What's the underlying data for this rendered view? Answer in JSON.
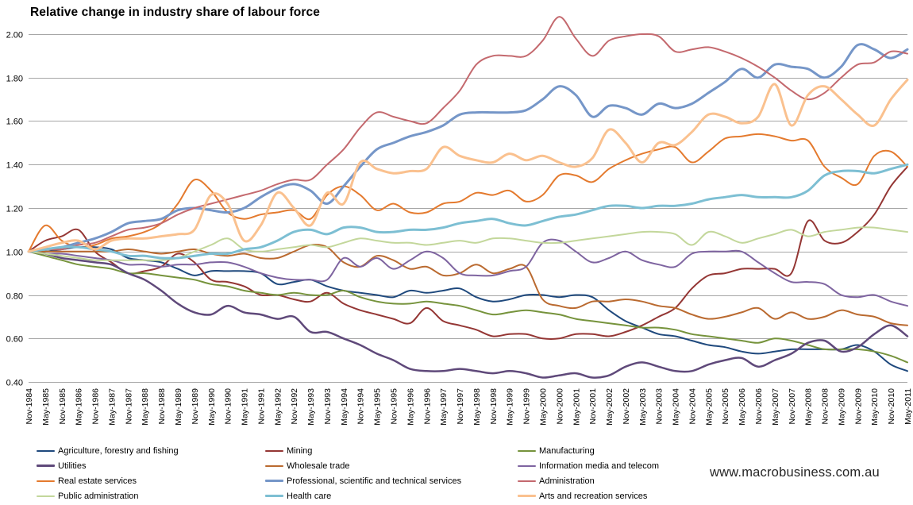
{
  "page": {
    "watermark": "www.macrobusiness.com.au"
  },
  "chart_data": {
    "type": "line",
    "title": "Relative change in industry share of labour force",
    "xlabel": "",
    "ylabel": "",
    "ylim": [
      0.4,
      2.0
    ],
    "grid": true,
    "grid_color": "#A6A6A6",
    "legend_position": "bottom",
    "baseline_value": 1.0,
    "y_ticks": [
      "2.00",
      "1.80",
      "1.60",
      "1.40",
      "1.20",
      "1.00",
      "0.80",
      "0.60",
      "0.40"
    ],
    "x_labels": [
      "Nov-1984",
      "May-1985",
      "Nov-1985",
      "May-1986",
      "Nov-1986",
      "May-1987",
      "Nov-1987",
      "May-1988",
      "Nov-1988",
      "May-1989",
      "Nov-1989",
      "May-1990",
      "Nov-1990",
      "May-1991",
      "Nov-1991",
      "May-1992",
      "Nov-1992",
      "May-1993",
      "Nov-1993",
      "May-1994",
      "Nov-1994",
      "May-1995",
      "Nov-1995",
      "May-1996",
      "Nov-1996",
      "May-1997",
      "Nov-1997",
      "May-1998",
      "Nov-1998",
      "May-1999",
      "Nov-1999",
      "May-2000",
      "Nov-2000",
      "May-2001",
      "Nov-2001",
      "May-2002",
      "Nov-2002",
      "May-2003",
      "Nov-2003",
      "May-2004",
      "Nov-2004",
      "May-2005",
      "Nov-2005",
      "May-2006",
      "Nov-2006",
      "May-2007",
      "Nov-2007",
      "May-2008",
      "Nov-2008",
      "May-2009",
      "Nov-2009",
      "May-2010",
      "Nov-2010",
      "May-2011"
    ],
    "series": [
      {
        "name": "Agriculture, forestry and fishing",
        "color": "#1F497D",
        "width": 2,
        "values": [
          1.0,
          1.0,
          1.01,
          1.02,
          1.02,
          1.01,
          0.97,
          0.96,
          0.95,
          0.92,
          0.89,
          0.91,
          0.91,
          0.91,
          0.9,
          0.85,
          0.86,
          0.87,
          0.84,
          0.82,
          0.81,
          0.8,
          0.79,
          0.82,
          0.81,
          0.82,
          0.83,
          0.79,
          0.77,
          0.78,
          0.8,
          0.8,
          0.79,
          0.8,
          0.79,
          0.73,
          0.68,
          0.65,
          0.62,
          0.61,
          0.59,
          0.57,
          0.56,
          0.54,
          0.53,
          0.54,
          0.55,
          0.55,
          0.55,
          0.55,
          0.57,
          0.54,
          0.48,
          0.45
        ]
      },
      {
        "name": "Mining",
        "color": "#943634",
        "width": 2,
        "values": [
          1.0,
          1.05,
          1.07,
          1.1,
          1.0,
          0.95,
          0.9,
          0.91,
          0.93,
          0.99,
          0.95,
          0.87,
          0.86,
          0.84,
          0.8,
          0.8,
          0.78,
          0.77,
          0.81,
          0.76,
          0.73,
          0.71,
          0.69,
          0.67,
          0.74,
          0.68,
          0.66,
          0.64,
          0.61,
          0.62,
          0.62,
          0.6,
          0.6,
          0.62,
          0.62,
          0.61,
          0.63,
          0.66,
          0.7,
          0.74,
          0.83,
          0.89,
          0.9,
          0.92,
          0.92,
          0.92,
          0.9,
          1.14,
          1.05,
          1.04,
          1.09,
          1.17,
          1.3,
          1.39
        ]
      },
      {
        "name": "Manufacturing",
        "color": "#76933C",
        "width": 2,
        "values": [
          1.0,
          0.98,
          0.96,
          0.94,
          0.93,
          0.92,
          0.9,
          0.9,
          0.89,
          0.88,
          0.87,
          0.85,
          0.84,
          0.82,
          0.81,
          0.8,
          0.81,
          0.8,
          0.8,
          0.82,
          0.79,
          0.77,
          0.76,
          0.76,
          0.77,
          0.76,
          0.75,
          0.73,
          0.71,
          0.72,
          0.73,
          0.72,
          0.71,
          0.69,
          0.68,
          0.67,
          0.66,
          0.65,
          0.65,
          0.64,
          0.62,
          0.61,
          0.6,
          0.59,
          0.58,
          0.6,
          0.59,
          0.57,
          0.55,
          0.55,
          0.55,
          0.54,
          0.52,
          0.49
        ]
      },
      {
        "name": "Utilities",
        "color": "#5F497A",
        "width": 2.5,
        "values": [
          1.0,
          0.99,
          0.97,
          0.96,
          0.95,
          0.94,
          0.9,
          0.87,
          0.82,
          0.76,
          0.72,
          0.71,
          0.75,
          0.72,
          0.71,
          0.69,
          0.7,
          0.63,
          0.63,
          0.6,
          0.57,
          0.53,
          0.5,
          0.46,
          0.45,
          0.45,
          0.46,
          0.45,
          0.44,
          0.45,
          0.44,
          0.42,
          0.43,
          0.44,
          0.42,
          0.43,
          0.47,
          0.49,
          0.47,
          0.45,
          0.45,
          0.48,
          0.5,
          0.51,
          0.47,
          0.5,
          0.53,
          0.58,
          0.59,
          0.54,
          0.56,
          0.62,
          0.66,
          0.61
        ]
      },
      {
        "name": "Wholesale trade",
        "color": "#BA6A30",
        "width": 2,
        "values": [
          1.0,
          1.0,
          1.0,
          1.0,
          1.0,
          1.0,
          1.01,
          1.0,
          0.99,
          1.0,
          1.01,
          0.99,
          0.98,
          0.99,
          0.97,
          0.97,
          1.0,
          1.03,
          1.02,
          0.95,
          0.93,
          0.98,
          0.96,
          0.92,
          0.93,
          0.89,
          0.9,
          0.94,
          0.9,
          0.92,
          0.93,
          0.78,
          0.75,
          0.74,
          0.77,
          0.77,
          0.78,
          0.77,
          0.75,
          0.74,
          0.71,
          0.69,
          0.7,
          0.72,
          0.74,
          0.69,
          0.72,
          0.69,
          0.7,
          0.73,
          0.71,
          0.7,
          0.67,
          0.66
        ]
      },
      {
        "name": "Information media and telecom",
        "color": "#7E64A0",
        "width": 2,
        "values": [
          1.0,
          0.99,
          0.99,
          0.98,
          0.97,
          0.96,
          0.94,
          0.94,
          0.93,
          0.94,
          0.94,
          0.95,
          0.95,
          0.93,
          0.9,
          0.88,
          0.87,
          0.87,
          0.87,
          0.97,
          0.93,
          0.97,
          0.92,
          0.96,
          1.0,
          0.97,
          0.9,
          0.89,
          0.89,
          0.91,
          0.93,
          1.04,
          1.05,
          1.0,
          0.95,
          0.97,
          1.0,
          0.96,
          0.94,
          0.93,
          0.99,
          1.0,
          1.0,
          1.0,
          0.95,
          0.9,
          0.86,
          0.86,
          0.85,
          0.8,
          0.79,
          0.8,
          0.77,
          0.75
        ]
      },
      {
        "name": "Real estate services",
        "color": "#E47A2E",
        "width": 2,
        "values": [
          1.0,
          1.12,
          1.05,
          1.02,
          1.03,
          1.06,
          1.07,
          1.09,
          1.13,
          1.22,
          1.33,
          1.28,
          1.18,
          1.15,
          1.17,
          1.18,
          1.19,
          1.15,
          1.26,
          1.3,
          1.26,
          1.19,
          1.22,
          1.18,
          1.18,
          1.22,
          1.23,
          1.27,
          1.26,
          1.28,
          1.23,
          1.26,
          1.35,
          1.35,
          1.32,
          1.38,
          1.42,
          1.45,
          1.47,
          1.48,
          1.41,
          1.46,
          1.52,
          1.53,
          1.54,
          1.53,
          1.51,
          1.51,
          1.39,
          1.34,
          1.31,
          1.44,
          1.46,
          1.39
        ]
      },
      {
        "name": "Professional, scientific and technical services",
        "color": "#7596C8",
        "width": 3,
        "values": [
          1.0,
          1.01,
          1.02,
          1.04,
          1.06,
          1.09,
          1.13,
          1.14,
          1.15,
          1.19,
          1.2,
          1.19,
          1.18,
          1.2,
          1.25,
          1.29,
          1.31,
          1.28,
          1.22,
          1.3,
          1.39,
          1.47,
          1.5,
          1.53,
          1.55,
          1.58,
          1.63,
          1.64,
          1.64,
          1.64,
          1.65,
          1.7,
          1.76,
          1.72,
          1.62,
          1.67,
          1.66,
          1.63,
          1.68,
          1.66,
          1.68,
          1.73,
          1.78,
          1.84,
          1.8,
          1.86,
          1.85,
          1.84,
          1.8,
          1.85,
          1.95,
          1.93,
          1.89,
          1.93
        ]
      },
      {
        "name": "Administration",
        "color": "#C4696E",
        "width": 2,
        "values": [
          1.0,
          1.01,
          1.01,
          1.03,
          1.04,
          1.07,
          1.1,
          1.11,
          1.13,
          1.17,
          1.2,
          1.22,
          1.24,
          1.26,
          1.28,
          1.31,
          1.33,
          1.33,
          1.4,
          1.47,
          1.57,
          1.64,
          1.62,
          1.6,
          1.59,
          1.66,
          1.74,
          1.86,
          1.9,
          1.9,
          1.9,
          1.97,
          2.08,
          1.98,
          1.9,
          1.97,
          1.99,
          2.0,
          1.99,
          1.92,
          1.93,
          1.94,
          1.92,
          1.89,
          1.85,
          1.8,
          1.74,
          1.7,
          1.73,
          1.8,
          1.86,
          1.87,
          1.92,
          1.91
        ]
      },
      {
        "name": "Public administration",
        "color": "#C3D79B",
        "width": 2,
        "values": [
          1.0,
          0.99,
          0.98,
          0.97,
          0.96,
          0.96,
          0.96,
          0.96,
          0.96,
          0.97,
          1.0,
          1.03,
          1.06,
          1.01,
          1.0,
          1.01,
          1.02,
          1.03,
          1.02,
          1.04,
          1.06,
          1.05,
          1.04,
          1.04,
          1.03,
          1.04,
          1.05,
          1.04,
          1.06,
          1.06,
          1.05,
          1.04,
          1.04,
          1.05,
          1.06,
          1.07,
          1.08,
          1.09,
          1.09,
          1.08,
          1.03,
          1.09,
          1.07,
          1.04,
          1.06,
          1.08,
          1.1,
          1.07,
          1.09,
          1.1,
          1.11,
          1.11,
          1.1,
          1.09
        ]
      },
      {
        "name": "Health care",
        "color": "#7DBFD3",
        "width": 3,
        "values": [
          1.0,
          1.01,
          1.02,
          1.02,
          1.01,
          1.0,
          0.98,
          0.98,
          0.97,
          0.97,
          0.98,
          0.99,
          0.99,
          1.01,
          1.02,
          1.05,
          1.09,
          1.1,
          1.08,
          1.11,
          1.11,
          1.09,
          1.09,
          1.1,
          1.1,
          1.11,
          1.13,
          1.14,
          1.15,
          1.13,
          1.12,
          1.14,
          1.16,
          1.17,
          1.19,
          1.21,
          1.21,
          1.2,
          1.21,
          1.21,
          1.22,
          1.24,
          1.25,
          1.26,
          1.25,
          1.25,
          1.25,
          1.28,
          1.35,
          1.37,
          1.37,
          1.36,
          1.38,
          1.4
        ]
      },
      {
        "name": "Arts and recreation services",
        "color": "#FAC18F",
        "width": 3,
        "values": [
          1.0,
          1.02,
          1.04,
          1.05,
          1.01,
          1.05,
          1.06,
          1.06,
          1.07,
          1.08,
          1.1,
          1.26,
          1.22,
          1.05,
          1.12,
          1.27,
          1.2,
          1.12,
          1.27,
          1.22,
          1.41,
          1.38,
          1.36,
          1.37,
          1.38,
          1.48,
          1.44,
          1.42,
          1.41,
          1.45,
          1.42,
          1.44,
          1.41,
          1.39,
          1.43,
          1.56,
          1.5,
          1.41,
          1.5,
          1.49,
          1.55,
          1.63,
          1.62,
          1.59,
          1.62,
          1.77,
          1.58,
          1.72,
          1.76,
          1.7,
          1.63,
          1.58,
          1.7,
          1.79
        ]
      }
    ]
  }
}
